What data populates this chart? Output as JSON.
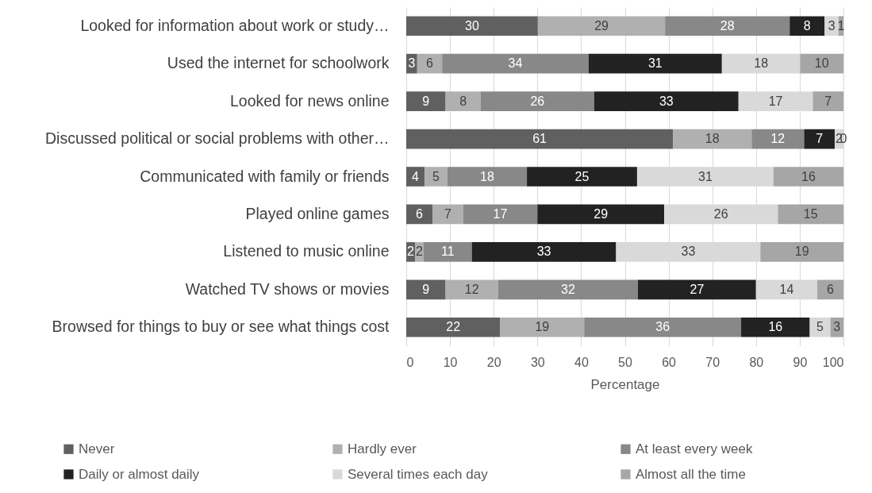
{
  "chart_data": {
    "type": "bar",
    "orientation": "horizontal",
    "stacked": true,
    "categories": [
      "Looked for information about work or study…",
      "Used the internet for schoolwork",
      "Looked for news online",
      "Discussed political or social problems with other…",
      "Communicated with family or friends",
      "Played online games",
      "Listened to music online",
      "Watched TV shows or movies",
      "Browsed for things to buy or see what things cost"
    ],
    "series": [
      {
        "name": "Never",
        "color": "#606060",
        "values": [
          30.1,
          2.5,
          9,
          61,
          4.2,
          6,
          2,
          9,
          21.5
        ],
        "value_labels": [
          "30",
          "3",
          "9",
          "61",
          "4",
          "6",
          "2",
          "9",
          "22"
        ]
      },
      {
        "name": "Hardly ever",
        "color": "#b0b0b0",
        "values": [
          29.1,
          5.7,
          8,
          18,
          5.2,
          7,
          2,
          12,
          19.2
        ],
        "value_labels": [
          "29",
          "6",
          "8",
          "18",
          "5",
          "7",
          "2",
          "12",
          "19"
        ]
      },
      {
        "name": "At least every week",
        "color": "#888888",
        "values": [
          28.5,
          33.5,
          26,
          12,
          18.2,
          17,
          11,
          32,
          35.9
        ],
        "value_labels": [
          "28",
          "34",
          "26",
          "12",
          "18",
          "17",
          "11",
          "32",
          "36"
        ]
      },
      {
        "name": "Daily or almost daily",
        "color": "#222222",
        "values": [
          8.0,
          30.5,
          33,
          7,
          25.2,
          29,
          33,
          27,
          15.7
        ],
        "value_labels": [
          "8",
          "31",
          "33",
          "7",
          "25",
          "29",
          "33",
          "27",
          "16"
        ]
      },
      {
        "name": "Several times each day",
        "color": "#d9d9d9",
        "values": [
          3.2,
          17.9,
          17,
          2,
          31.2,
          26,
          33,
          14,
          4.7
        ],
        "value_labels": [
          "3",
          "18",
          "17",
          "2",
          "31",
          "26",
          "33",
          "14",
          "5"
        ]
      },
      {
        "name": "Almost all the time",
        "color": "#a6a6a6",
        "values": [
          1.1,
          9.9,
          7,
          0,
          16.0,
          15,
          19,
          6,
          3.0
        ],
        "value_labels": [
          "1",
          "10",
          "7",
          "0",
          "16",
          "15",
          "19",
          "6",
          "3"
        ]
      }
    ],
    "xlabel": "Percentage",
    "xlim": [
      0,
      100
    ],
    "xticks": [
      0,
      10,
      20,
      30,
      40,
      50,
      60,
      70,
      80,
      90,
      100
    ],
    "grid": "x",
    "legend": "bottom"
  }
}
